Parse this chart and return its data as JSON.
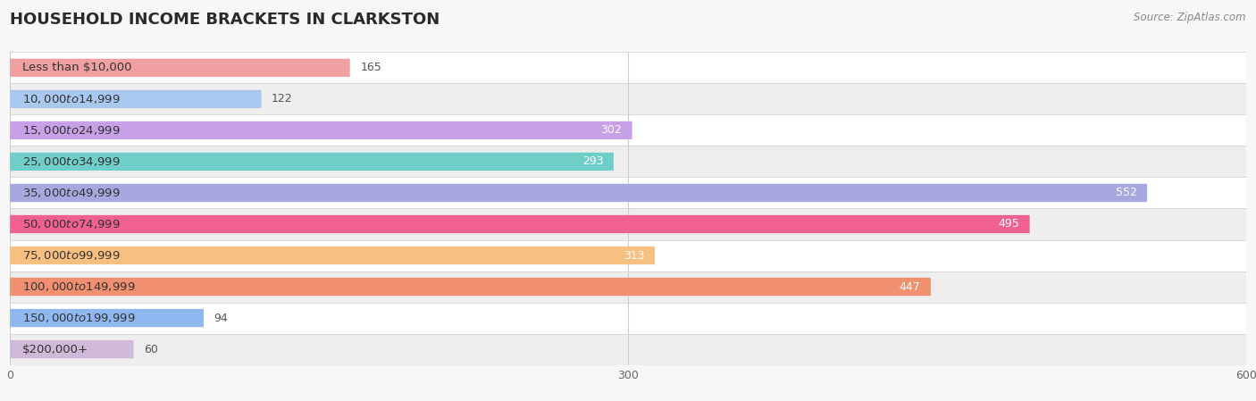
{
  "title": "HOUSEHOLD INCOME BRACKETS IN CLARKSTON",
  "source": "Source: ZipAtlas.com",
  "categories": [
    "Less than $10,000",
    "$10,000 to $14,999",
    "$15,000 to $24,999",
    "$25,000 to $34,999",
    "$35,000 to $49,999",
    "$50,000 to $74,999",
    "$75,000 to $99,999",
    "$100,000 to $149,999",
    "$150,000 to $199,999",
    "$200,000+"
  ],
  "values": [
    165,
    122,
    302,
    293,
    552,
    495,
    313,
    447,
    94,
    60
  ],
  "bar_colors": [
    "#F0A0A0",
    "#A8C8F0",
    "#C8A0E8",
    "#70CEC8",
    "#A8A8E0",
    "#F06090",
    "#F8C080",
    "#F09070",
    "#90B8F0",
    "#D0B8D8"
  ],
  "background_color": "#f7f7f7",
  "xlim": [
    0,
    600
  ],
  "xticks": [
    0,
    300,
    600
  ],
  "title_fontsize": 13,
  "label_fontsize": 9.5,
  "value_fontsize": 9,
  "bar_height": 0.58
}
